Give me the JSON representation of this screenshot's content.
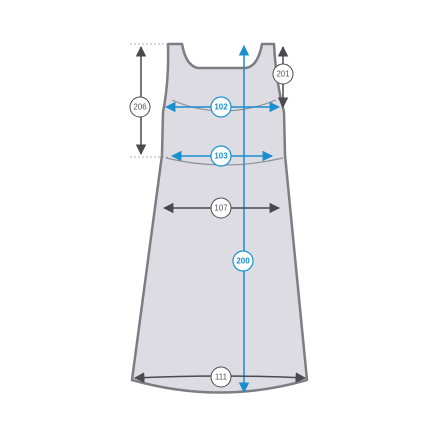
{
  "colors": {
    "dress_fill": "#dcdce2",
    "dress_stroke": "#7d7d84",
    "dark_line": "#4a4a4f",
    "accent_blue": "#1a8fd0",
    "badge_fill": "#ffffff"
  },
  "measurements": {
    "m206": "206",
    "m201": "201",
    "m102": "102",
    "m103": "103",
    "m107": "107",
    "m200": "200",
    "m111": "111"
  }
}
